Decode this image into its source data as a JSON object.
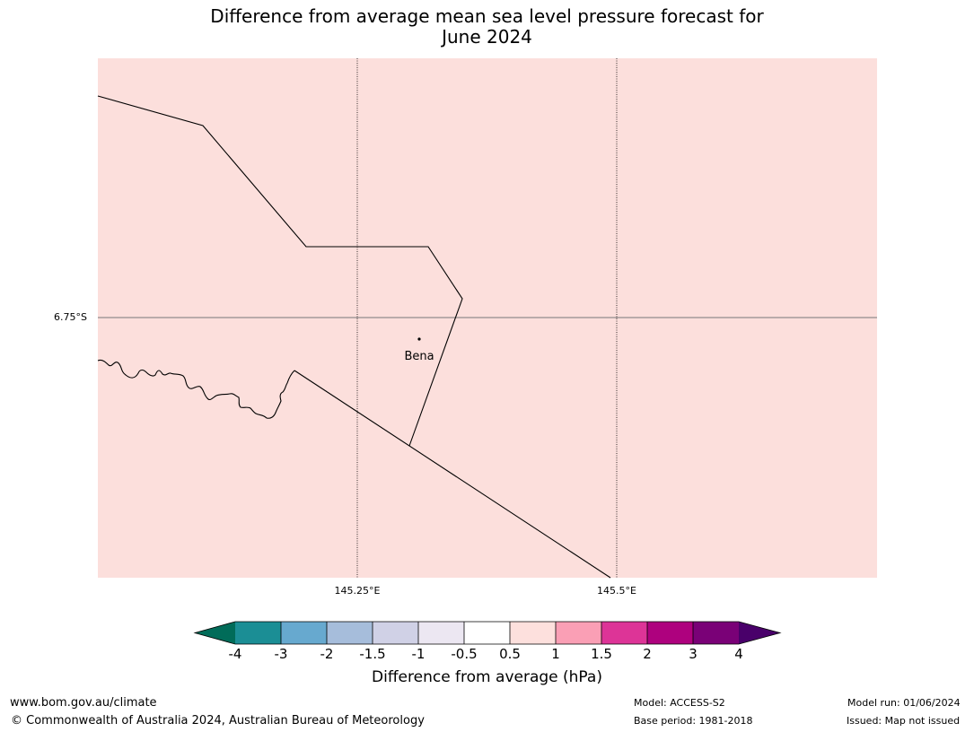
{
  "title": {
    "line1": "Difference from average mean sea level pressure forecast for",
    "line2": "June 2024"
  },
  "map": {
    "background_color": "#fcdfdc",
    "latitude_labels": [
      "6.75°S"
    ],
    "longitude_labels": [
      "145.25°E",
      "145.5°E"
    ],
    "place": {
      "name": "Bena"
    }
  },
  "colorbar": {
    "label": "Difference from average (hPa)",
    "ticks": [
      "-4",
      "-3",
      "-2",
      "-1.5",
      "-1",
      "-0.5",
      "0.5",
      "1",
      "1.5",
      "2",
      "3",
      "4"
    ],
    "colors": [
      "#1b8e95",
      "#67a9cf",
      "#a6bddb",
      "#d0d1e6",
      "#ece7f2",
      "#ffffff",
      "#fde0dd",
      "#fa9fb5",
      "#dd3497",
      "#ae017e",
      "#7a0177"
    ],
    "under_color": "#016c59",
    "over_color": "#49006a"
  },
  "footer": {
    "website": "www.bom.gov.au/climate",
    "copyright": "© Commonwealth of Australia 2024, Australian Bureau of Meteorology",
    "model": "Model: ACCESS-S2",
    "base_period": "Base period: 1981-2018",
    "model_run": "Model run: 01/06/2024",
    "issued": "Issued: Map not issued"
  }
}
